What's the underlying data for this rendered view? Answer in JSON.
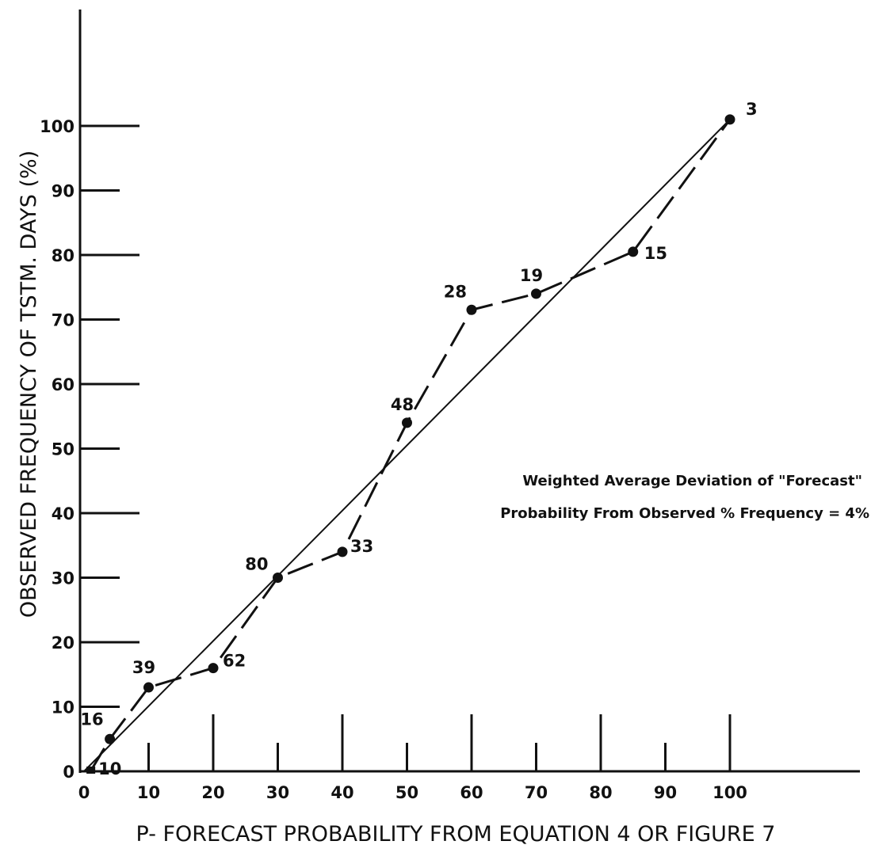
{
  "chart_data": {
    "type": "line",
    "xlabel": "P- FORECAST PROBABILITY FROM EQUATION 4 OR FIGURE 7",
    "ylabel": "OBSERVED FREQUENCY OF TSTM. DAYS (%)",
    "xlim": [
      0,
      120
    ],
    "ylim": [
      0,
      120
    ],
    "x_ticks": [
      0,
      10,
      20,
      30,
      40,
      50,
      60,
      70,
      80,
      90,
      100
    ],
    "y_ticks": [
      0,
      10,
      20,
      30,
      40,
      50,
      60,
      70,
      80,
      90,
      100
    ],
    "x_tick_labels": [
      "0",
      "10",
      "20",
      "30",
      "40",
      "50",
      "60",
      "70",
      "80",
      "90",
      "100"
    ],
    "y_tick_labels": [
      "0",
      "10",
      "20",
      "30",
      "40",
      "50",
      "60",
      "70",
      "80",
      "90",
      "100"
    ],
    "series": [
      {
        "style": "dashed-with-points",
        "x": [
          1,
          4,
          10,
          20,
          30,
          40,
          50,
          60,
          70,
          85,
          100
        ],
        "y": [
          0,
          5,
          13,
          16,
          30,
          34,
          54,
          71.5,
          74,
          80.5,
          101
        ],
        "point_labels": [
          "10",
          "16",
          "39",
          "62",
          "80",
          "33",
          "48",
          "28",
          "19",
          "15",
          "3"
        ]
      },
      {
        "style": "solid-diagonal",
        "x": [
          0,
          100
        ],
        "y": [
          0,
          101
        ]
      }
    ],
    "annotations": [
      "Weighted Average Deviation of \"Forecast\"",
      "Probability From Observed % Frequency = 4%"
    ],
    "grid": false
  }
}
